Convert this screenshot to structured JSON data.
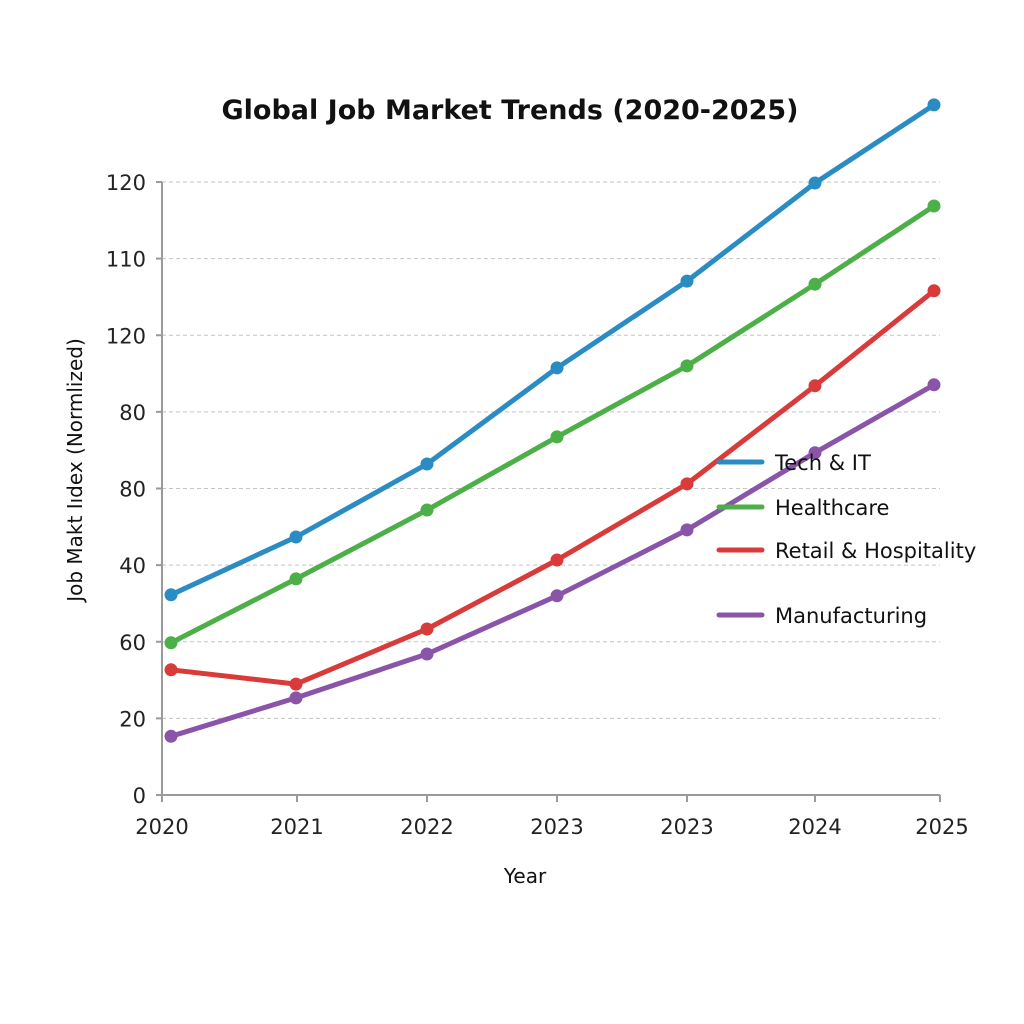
{
  "chart_data": {
    "type": "line",
    "title": "Global Job Market Trends (2020-2025)",
    "xlabel": "Year",
    "ylabel": "Job Makt Iıdex (Normlized)",
    "categories": [
      "2020",
      "2021",
      "2022",
      "2023",
      "2023",
      "2024",
      "2025"
    ],
    "y_tick_labels": [
      "0",
      "20",
      "60",
      "40",
      "80",
      "80",
      "120",
      "110",
      "120"
    ],
    "ylim": [
      0,
      120
    ],
    "grid": true,
    "legend_position": "center-right",
    "series": [
      {
        "name": "Tech & IT",
        "color": "#2b8cc4",
        "values": [
          39.2,
          50.5,
          64.8,
          83.6,
          100.6,
          119.8,
          135.1
        ]
      },
      {
        "name": "Healthcare",
        "color": "#4caf48",
        "values": [
          29.8,
          42.3,
          55.8,
          70.1,
          84.0,
          100.0,
          115.3
        ]
      },
      {
        "name": "Retail & Hospitality",
        "color": "#d93a3a",
        "values": [
          24.5,
          21.7,
          32.5,
          46.0,
          60.9,
          80.1,
          98.7
        ]
      },
      {
        "name": "Manufacturing",
        "color": "#8a55a8",
        "values": [
          11.5,
          19.0,
          27.6,
          39.0,
          51.9,
          67.0,
          80.3
        ]
      }
    ]
  }
}
